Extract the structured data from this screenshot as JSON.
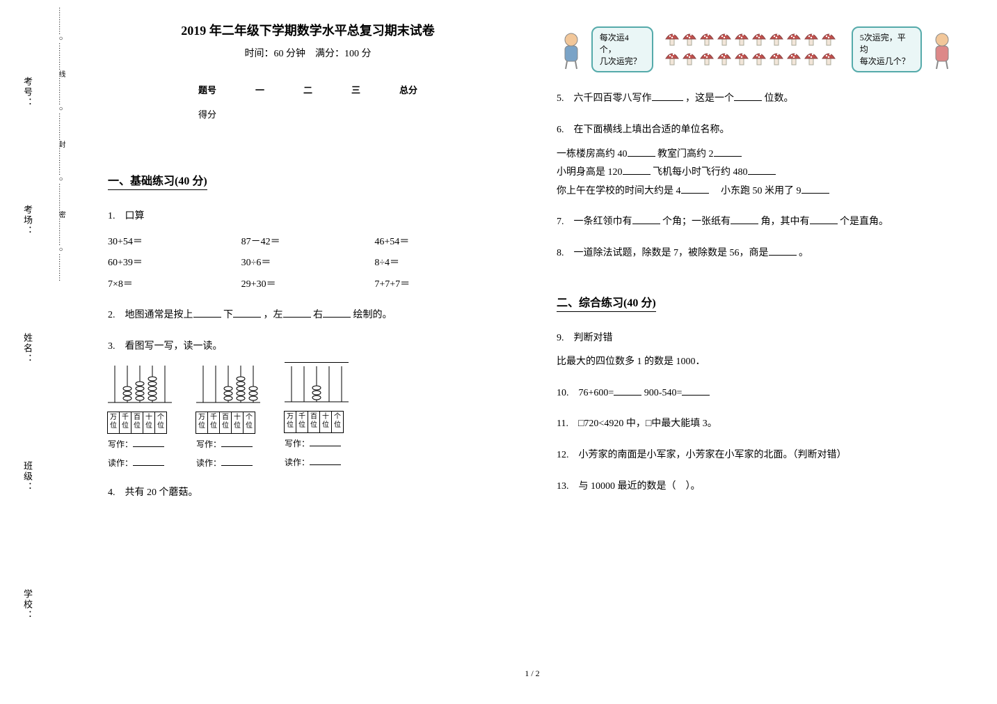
{
  "binding": {
    "labels": [
      "考号：",
      "考场：",
      "姓名：",
      "班级：",
      "学校："
    ],
    "strip_text": "…………○…………线…………○…………封…………○…………密…………○…………"
  },
  "header": {
    "title": "2019 年二年级下学期数学水平总复习期末试卷",
    "subtitle": "时间：60 分钟　满分：100 分"
  },
  "score_table": {
    "cols": [
      "题号",
      "一",
      "二",
      "三",
      "总分"
    ],
    "row_label": "得分"
  },
  "section1": {
    "head": "一、基础练习(40 分)",
    "q1_label": "1.　口算",
    "q1_rows": [
      [
        "30+54＝",
        "87－42＝",
        "46+54＝"
      ],
      [
        "60+39＝",
        "30÷6＝",
        "8÷4＝"
      ],
      [
        "7×8＝",
        "29+30＝",
        "7+7+7＝"
      ]
    ],
    "q2_a": "2.　地图通常是按上",
    "q2_b": "下",
    "q2_c": "，左",
    "q2_d": "右",
    "q2_e": "绘制的。",
    "q3_label": "3.　看图写一写，读一读。",
    "digit_labels": [
      "万位",
      "千位",
      "百位",
      "十位",
      "个位"
    ],
    "write_label": "写作：",
    "read_label": "读作：",
    "abacus_values": [
      [
        0,
        3,
        4,
        5,
        0
      ],
      [
        0,
        0,
        3,
        5,
        3
      ],
      [
        0,
        0,
        3,
        0,
        0
      ]
    ],
    "q4_label": "4.　共有 20 个蘑菇。",
    "mushroom_left_1": "每次运4个，",
    "mushroom_left_2": "几次运完？",
    "mushroom_right_1": "5次运完，平均",
    "mushroom_right_2": "每次运几个？"
  },
  "section_right": {
    "q5_a": "5.　六千四百零八写作",
    "q5_b": "，这是一个",
    "q5_c": "位数。",
    "q6_head": "6.　在下面横线上填出合适的单位名称。",
    "q6_l1a": "一栋楼房高约 40",
    "q6_l1b": "教室门高约 2",
    "q6_l2a": "小明身高是 120",
    "q6_l2b": "飞机每小时飞行约 480",
    "q6_l3a": "你上午在学校的时间大约是 4",
    "q6_l3b": "　小东跑 50 米用了 9",
    "q7_a": "7.　一条红领巾有",
    "q7_b": "个角；一张纸有",
    "q7_c": "角，其中有",
    "q7_d": "个是直角。",
    "q8_a": "8.　一道除法试题，除数是 7，被除数是 56，商是",
    "q8_b": "。",
    "sec2_head": "二、综合练习(40 分)",
    "q9": "9.　判断对错",
    "q9_line": "比最大的四位数多 1 的数是 1000．",
    "q10_a": "10.　76+600=",
    "q10_b": "900-540=",
    "q11": "11.　□720<4920 中，□中最大能填 3。",
    "q12": "12.　小芳家的南面是小军家，小芳家在小军家的北面。（判断对错）",
    "q13": "13.　与 10000 最近的数是（　）。"
  },
  "page_num": "1 / 2",
  "colors": {
    "speech_border": "#5aa",
    "speech_bg": "#eaf6f6",
    "mushroom_cap": "#c0504d",
    "mushroom_stem": "#f2e6d9",
    "kid_skin": "#f2c79a",
    "kid_shirt1": "#7aa3c7",
    "kid_shirt2": "#d88"
  }
}
